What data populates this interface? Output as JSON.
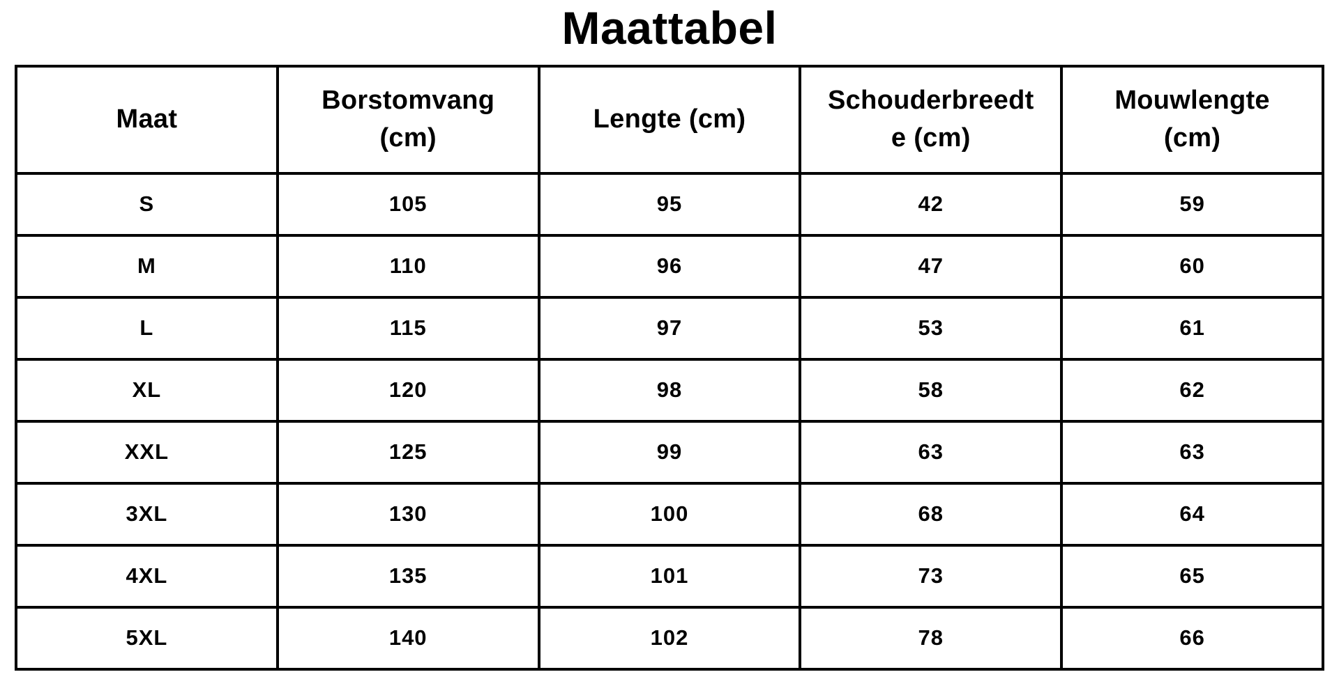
{
  "title": "Maattabel",
  "colors": {
    "text": "#000000",
    "border": "#000000",
    "background": "#ffffff"
  },
  "chart_data": {
    "type": "table",
    "title": "Maattabel",
    "columns": [
      "Maat",
      "Borstomvang (cm)",
      "Lengte (cm)",
      "Schouderbreedte (cm)",
      "Mouwlengte (cm)"
    ],
    "rows": [
      [
        "S",
        105,
        95,
        42,
        59
      ],
      [
        "M",
        110,
        96,
        47,
        60
      ],
      [
        "L",
        115,
        97,
        53,
        61
      ],
      [
        "XL",
        120,
        98,
        58,
        62
      ],
      [
        "XXL",
        125,
        99,
        63,
        63
      ],
      [
        "3XL",
        130,
        100,
        68,
        64
      ],
      [
        "4XL",
        135,
        101,
        73,
        65
      ],
      [
        "5XL",
        140,
        102,
        78,
        66
      ]
    ]
  },
  "table_display": {
    "column_labels": [
      "Maat",
      "Borstomvang\n(cm)",
      "Lengte (cm)",
      "Schouderbreedt\ne (cm)",
      "Mouwlengte\n(cm)"
    ]
  }
}
